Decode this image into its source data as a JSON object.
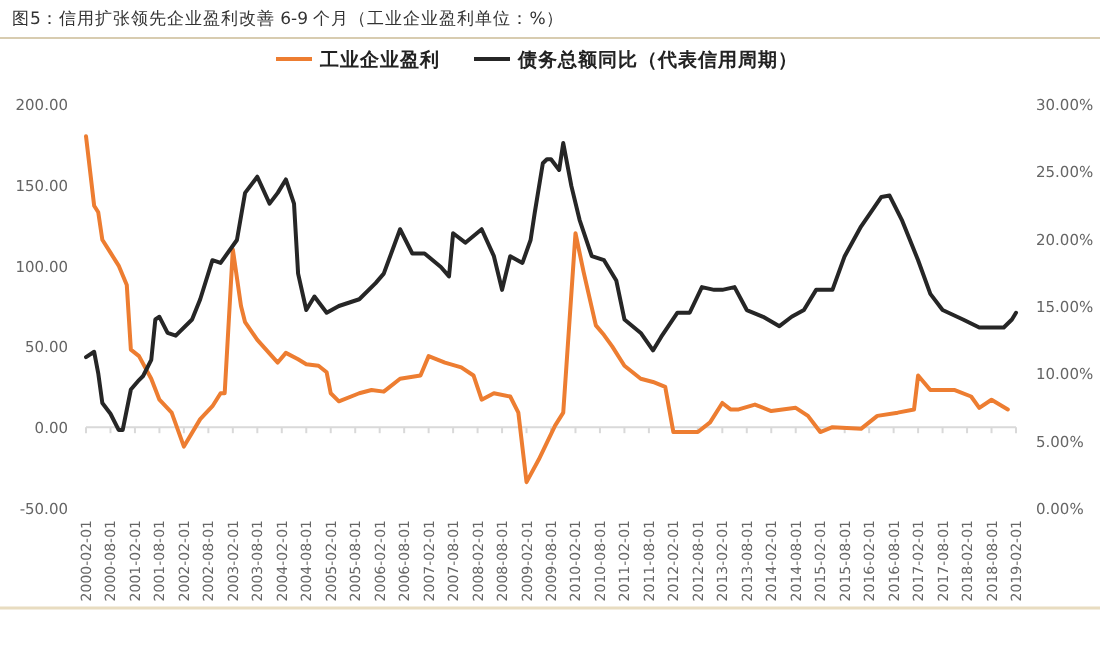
{
  "chart_data": {
    "type": "line",
    "title": "图5：信用扩张领先企业盈利改善 6-9 个月（工业企业盈利单位：%）",
    "legend": "top",
    "tick_labels": "xy",
    "xlim": [
      "2000-02",
      "2019-02"
    ],
    "xticks": [
      "2000-02-01",
      "2000-08-01",
      "2001-02-01",
      "2001-08-01",
      "2002-02-01",
      "2002-08-01",
      "2003-02-01",
      "2003-08-01",
      "2004-02-01",
      "2004-08-01",
      "2005-02-01",
      "2005-08-01",
      "2006-02-01",
      "2006-08-01",
      "2007-02-01",
      "2007-08-01",
      "2008-02-01",
      "2008-08-01",
      "2009-02-01",
      "2009-08-01",
      "2010-02-01",
      "2010-08-01",
      "2011-02-01",
      "2011-08-01",
      "2012-02-01",
      "2012-08-01",
      "2013-02-01",
      "2013-08-01",
      "2014-02-01",
      "2014-08-01",
      "2015-02-01",
      "2015-08-01",
      "2016-02-01",
      "2016-08-01",
      "2017-02-01",
      "2017-08-01",
      "2018-02-01",
      "2018-08-01",
      "2019-02-01"
    ],
    "ylim": [
      -50,
      200
    ],
    "yticks": [
      {
        "value": -50,
        "label": "-50.00"
      },
      {
        "value": 0,
        "label": "0.00"
      },
      {
        "value": 50,
        "label": "50.00"
      },
      {
        "value": 100,
        "label": "100.00"
      },
      {
        "value": 150,
        "label": "150.00"
      },
      {
        "value": 200,
        "label": "200.00"
      }
    ],
    "y2lim": [
      0,
      30
    ],
    "y2ticks": [
      {
        "value": 0,
        "label": "0.00%"
      },
      {
        "value": 5,
        "label": "5.00%"
      },
      {
        "value": 10,
        "label": "10.00%"
      },
      {
        "value": 15,
        "label": "15.00%"
      },
      {
        "value": 20,
        "label": "20.00%"
      },
      {
        "value": 25,
        "label": "25.00%"
      },
      {
        "value": 30,
        "label": "30.00%"
      }
    ],
    "series": [
      {
        "name": "工业企业盈利",
        "color": "#ed7d31",
        "x": [
          "2000-02",
          "2000-04",
          "2000-05",
          "2000-06",
          "2000-08",
          "2000-10",
          "2000-12",
          "2001-01",
          "2001-03",
          "2001-06",
          "2001-08",
          "2001-11",
          "2002-02",
          "2002-06",
          "2002-09",
          "2002-11",
          "2002-12",
          "2003-02",
          "2003-04",
          "2003-05",
          "2003-08",
          "2004-01",
          "2004-03",
          "2004-06",
          "2004-08",
          "2004-11",
          "2005-01",
          "2005-02",
          "2005-04",
          "2005-09",
          "2005-12",
          "2006-03",
          "2006-07",
          "2006-12",
          "2007-02",
          "2007-06",
          "2007-10",
          "2008-01",
          "2008-03",
          "2008-06",
          "2008-10",
          "2008-12",
          "2009-02",
          "2009-05",
          "2009-09",
          "2009-11",
          "2010-02",
          "2010-04",
          "2010-07",
          "2010-09",
          "2010-11",
          "2011-02",
          "2011-06",
          "2011-09",
          "2011-12",
          "2012-02",
          "2012-08",
          "2012-11",
          "2013-02",
          "2013-04",
          "2013-06",
          "2013-10",
          "2014-02",
          "2014-08",
          "2014-11",
          "2015-02",
          "2015-05",
          "2015-12",
          "2016-04",
          "2016-09",
          "2017-01",
          "2017-02",
          "2017-05",
          "2017-11",
          "2018-03",
          "2018-05",
          "2018-08",
          "2018-12"
        ],
        "values": [
          180,
          137,
          133,
          116,
          108,
          100,
          88,
          48,
          44,
          30,
          17,
          9,
          -12,
          5,
          13,
          21,
          21,
          110,
          75,
          65,
          54,
          40,
          46,
          42,
          39,
          38,
          34,
          21,
          16,
          21,
          23,
          22,
          30,
          32,
          44,
          40,
          37,
          32,
          17,
          21,
          19,
          9,
          -34,
          -20,
          1,
          9,
          120,
          96,
          63,
          57,
          50,
          38,
          30,
          28,
          25,
          -3,
          -3,
          3,
          15,
          11,
          11,
          14,
          10,
          12,
          7,
          -3,
          0,
          -1,
          7,
          9,
          11,
          32,
          23,
          23,
          19,
          12,
          17,
          11
        ]
      },
      {
        "name": "债务总额同比（代表信用周期）",
        "color": "#262626",
        "axis": "y2",
        "x": [
          "2000-02",
          "2000-04",
          "2000-05",
          "2000-06",
          "2000-08",
          "2000-10",
          "2000-11",
          "2001-01",
          "2001-03",
          "2001-04",
          "2001-06",
          "2001-07",
          "2001-08",
          "2001-10",
          "2001-12",
          "2002-04",
          "2002-06",
          "2002-09",
          "2002-11",
          "2003-03",
          "2003-05",
          "2003-08",
          "2003-11",
          "2004-01",
          "2004-03",
          "2004-05",
          "2004-06",
          "2004-08",
          "2004-10",
          "2005-01",
          "2005-04",
          "2005-09",
          "2006-01",
          "2006-03",
          "2006-07",
          "2006-10",
          "2007-01",
          "2007-05",
          "2007-07",
          "2007-08",
          "2007-11",
          "2008-03",
          "2008-06",
          "2008-08",
          "2008-10",
          "2009-01",
          "2009-03",
          "2009-04",
          "2009-06",
          "2009-07",
          "2009-08",
          "2009-10",
          "2009-11",
          "2010-01",
          "2010-03",
          "2010-06",
          "2010-09",
          "2010-12",
          "2011-02",
          "2011-06",
          "2011-09",
          "2011-11",
          "2012-03",
          "2012-06",
          "2012-09",
          "2012-12",
          "2013-02",
          "2013-05",
          "2013-08",
          "2013-12",
          "2014-04",
          "2014-07",
          "2014-10",
          "2015-01",
          "2015-05",
          "2015-08",
          "2015-12",
          "2016-05",
          "2016-07",
          "2016-10",
          "2017-02",
          "2017-05",
          "2017-08",
          "2018-01",
          "2018-05",
          "2018-11",
          "2019-01",
          "2019-02"
        ],
        "values": [
          11.2,
          11.6,
          10.0,
          7.8,
          7.0,
          5.8,
          5.8,
          8.8,
          9.5,
          9.8,
          11.0,
          14.0,
          14.2,
          13.0,
          12.8,
          14.0,
          15.5,
          18.4,
          18.2,
          19.9,
          23.4,
          24.6,
          22.6,
          23.4,
          24.4,
          22.6,
          17.4,
          14.7,
          15.7,
          14.5,
          15.0,
          15.5,
          16.7,
          17.4,
          20.7,
          18.9,
          18.9,
          17.9,
          17.2,
          20.4,
          19.7,
          20.7,
          18.7,
          16.2,
          18.7,
          18.2,
          19.9,
          21.9,
          25.6,
          25.9,
          25.9,
          25.1,
          27.1,
          23.9,
          21.4,
          18.7,
          18.4,
          16.9,
          14.0,
          13.0,
          11.7,
          12.7,
          14.5,
          14.5,
          16.4,
          16.2,
          16.2,
          16.4,
          14.7,
          14.2,
          13.5,
          14.2,
          14.7,
          16.2,
          16.2,
          18.7,
          20.9,
          23.1,
          23.2,
          21.4,
          18.4,
          15.9,
          14.7,
          14.0,
          13.4,
          13.4,
          14.0,
          14.5
        ]
      }
    ]
  }
}
